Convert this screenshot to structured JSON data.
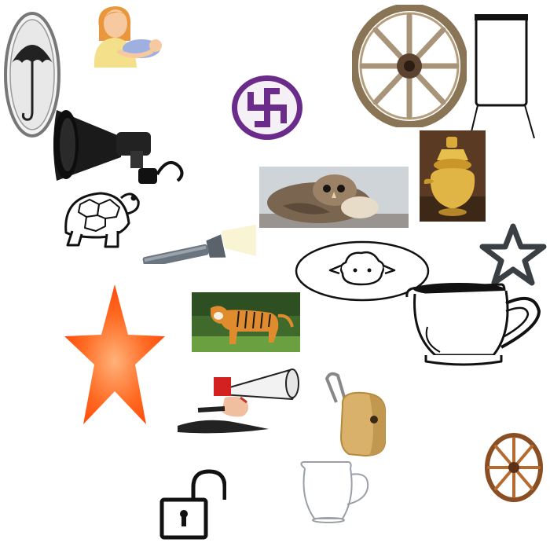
{
  "canvas": {
    "background": "#ffffff"
  },
  "items": [
    {
      "icon": "umbrella-icon"
    },
    {
      "icon": "mother-with-baby-icon"
    },
    {
      "icon": "swastika-icon",
      "color": "#6a2b8a"
    },
    {
      "icon": "cart-wheel-icon"
    },
    {
      "icon": "frame-icon"
    },
    {
      "icon": "megaphone-icon"
    },
    {
      "icon": "brass-pot-icon"
    },
    {
      "icon": "owl-icon"
    },
    {
      "icon": "tortoise-icon"
    },
    {
      "icon": "flashlight-icon"
    },
    {
      "icon": "sheep-sign-icon"
    },
    {
      "icon": "star-outline-icon"
    },
    {
      "icon": "star-orange-icon",
      "color": "#ff5a14"
    },
    {
      "icon": "tiger-icon"
    },
    {
      "icon": "pitcher-icon"
    },
    {
      "icon": "hand-megaphone-icon"
    },
    {
      "icon": "padlock-brass-icon"
    },
    {
      "icon": "open-padlock-icon"
    },
    {
      "icon": "glass-pitcher-icon"
    },
    {
      "icon": "small-wheel-icon"
    }
  ]
}
